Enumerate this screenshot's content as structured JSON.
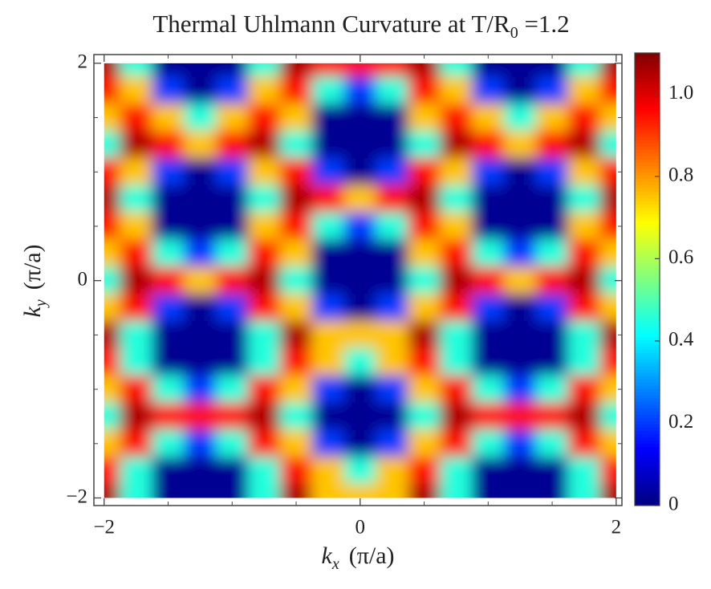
{
  "chart_data": {
    "type": "heatmap",
    "title": {
      "main": "Thermal Uhlmann Curvature at T/R",
      "subscript": "0",
      "rest": " =1.2"
    },
    "x_label": {
      "symbol": "k",
      "subscript": "x",
      "unit": "(π/a)"
    },
    "y_label": {
      "symbol": "k",
      "subscript": "y",
      "unit": "(π/a)"
    },
    "x": [
      -2,
      -1.75,
      -1.5,
      -1.25,
      -1,
      -0.75,
      -0.5,
      -0.25,
      0,
      0.25,
      0.5,
      0.75,
      1,
      1.25,
      1.5,
      1.75,
      2
    ],
    "y": [
      2,
      1.75,
      1.5,
      1.25,
      1,
      0.75,
      0.5,
      0.25,
      0,
      -0.25,
      -0.5,
      -0.75,
      -1,
      -1.25,
      -1.5,
      -1.75,
      -2
    ],
    "z": [
      [
        1.05,
        0.45,
        0.02,
        0.02,
        0.02,
        0.45,
        1.05,
        0.95,
        0.95,
        0.95,
        1.05,
        0.45,
        0.02,
        0.02,
        0.02,
        0.45,
        1.05
      ],
      [
        0.95,
        0.75,
        0.2,
        0.02,
        0.2,
        0.75,
        0.95,
        0.45,
        0.2,
        0.45,
        0.95,
        0.75,
        0.2,
        0.02,
        0.2,
        0.75,
        0.95
      ],
      [
        0.75,
        0.95,
        0.75,
        0.45,
        0.75,
        0.95,
        0.75,
        0.02,
        0.02,
        0.02,
        0.75,
        0.95,
        0.75,
        0.45,
        0.75,
        0.95,
        0.75
      ],
      [
        0.45,
        1.05,
        0.95,
        0.75,
        0.95,
        1.05,
        0.45,
        0.02,
        0.02,
        0.02,
        0.45,
        1.05,
        0.95,
        0.75,
        0.95,
        1.05,
        0.45
      ],
      [
        0.95,
        0.75,
        0.2,
        0.02,
        0.2,
        0.75,
        0.95,
        0.2,
        0.02,
        0.2,
        0.95,
        0.75,
        0.2,
        0.02,
        0.2,
        0.75,
        0.95
      ],
      [
        1.05,
        0.45,
        0.02,
        0.02,
        0.02,
        0.45,
        1.05,
        0.95,
        0.75,
        0.95,
        1.05,
        0.45,
        0.02,
        0.02,
        0.02,
        0.45,
        1.05
      ],
      [
        0.95,
        0.75,
        0.02,
        0.02,
        0.02,
        0.75,
        0.95,
        0.45,
        0.2,
        0.45,
        0.95,
        0.75,
        0.02,
        0.02,
        0.02,
        0.75,
        0.95
      ],
      [
        0.75,
        0.95,
        0.45,
        0.2,
        0.45,
        0.95,
        0.75,
        0.02,
        0.02,
        0.02,
        0.75,
        0.95,
        0.45,
        0.2,
        0.45,
        0.95,
        0.75
      ],
      [
        0.45,
        1.05,
        0.95,
        0.75,
        0.95,
        1.05,
        0.45,
        0.02,
        0.02,
        0.02,
        0.45,
        1.05,
        0.95,
        0.75,
        0.95,
        1.05,
        0.45
      ],
      [
        0.75,
        0.95,
        0.2,
        0.02,
        0.2,
        0.95,
        0.75,
        0.2,
        0.02,
        0.2,
        0.75,
        0.95,
        0.2,
        0.02,
        0.2,
        0.95,
        0.75
      ],
      [
        1.05,
        0.45,
        0.02,
        0.02,
        0.02,
        0.45,
        1.05,
        0.75,
        0.75,
        0.75,
        1.05,
        0.45,
        0.02,
        0.02,
        0.02,
        0.45,
        1.05
      ],
      [
        0.95,
        0.45,
        0.02,
        0.02,
        0.02,
        0.45,
        0.95,
        0.75,
        0.45,
        0.75,
        0.95,
        0.45,
        0.02,
        0.02,
        0.02,
        0.45,
        0.95
      ],
      [
        0.75,
        0.95,
        0.45,
        0.2,
        0.45,
        0.95,
        0.75,
        0.2,
        0.02,
        0.2,
        0.75,
        0.95,
        0.45,
        0.2,
        0.45,
        0.95,
        0.75
      ],
      [
        0.45,
        1.05,
        0.95,
        0.95,
        0.95,
        1.05,
        0.45,
        0.02,
        0.02,
        0.02,
        0.45,
        1.05,
        0.95,
        0.95,
        0.95,
        1.05,
        0.45
      ],
      [
        0.75,
        0.95,
        0.45,
        0.2,
        0.45,
        0.95,
        0.75,
        0.2,
        0.02,
        0.2,
        0.75,
        0.95,
        0.45,
        0.2,
        0.45,
        0.95,
        0.75
      ],
      [
        0.95,
        0.45,
        0.02,
        0.02,
        0.02,
        0.45,
        0.95,
        0.75,
        0.45,
        0.75,
        0.95,
        0.45,
        0.02,
        0.02,
        0.02,
        0.45,
        0.95
      ],
      [
        1.05,
        0.45,
        0.02,
        0.02,
        0.02,
        0.45,
        1.05,
        0.75,
        0.75,
        0.75,
        1.05,
        0.45,
        0.02,
        0.02,
        0.02,
        0.45,
        1.05
      ]
    ],
    "colormap": "jet",
    "xlim": [
      -2.08,
      2.045
    ],
    "ylim": [
      -2.07,
      2.08
    ],
    "xticks": [
      {
        "value": -2,
        "label": "−2"
      },
      0,
      2
    ],
    "yticks": [
      {
        "value": -2,
        "label": "−2"
      },
      0,
      2
    ],
    "xminor": [
      -1.5,
      -1,
      -0.5,
      0.5,
      1,
      1.5
    ],
    "yminor": [
      -1.5,
      -1,
      -0.5,
      0.5,
      1,
      1.5
    ],
    "clim": [
      0,
      1.1
    ],
    "cticks": [
      0,
      0.2,
      0.4,
      0.6,
      0.8,
      {
        "value": 1,
        "label": "1.0"
      }
    ]
  }
}
